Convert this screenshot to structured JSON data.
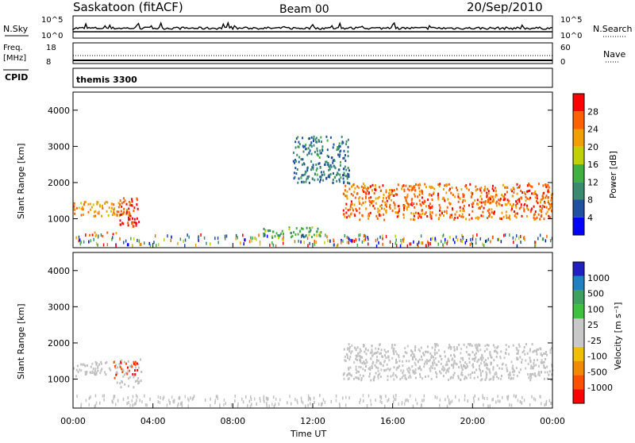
{
  "header": {
    "station": "Saskatoon (fitACF)",
    "beam": "Beam 00",
    "date": "20/Sep/2010"
  },
  "noise_panel": {
    "left_label": "N.Sky",
    "left_ticks": [
      "10^5",
      "10^0"
    ],
    "right_ticks": [
      "10^5",
      "10^0"
    ],
    "right_label": "N.Search"
  },
  "freq_panel": {
    "left_label_1": "Freq.",
    "left_label_2": "[MHz]",
    "left_ticks": [
      "18",
      "8"
    ],
    "right_ticks": [
      "60",
      "0"
    ],
    "right_label": "Nave"
  },
  "cpid_panel": {
    "label": "CPID",
    "value": "themis 3300"
  },
  "colors": {
    "power_scale": [
      "#0000ff",
      "#2050a0",
      "#3a8a70",
      "#40b040",
      "#c0d000",
      "#f0a000",
      "#ff6000",
      "#ff0000"
    ],
    "velocity_scale": [
      "#ff0000",
      "#ff5000",
      "#f08a00",
      "#f0c000",
      "#c8c8c8",
      "#c8c8c8",
      "#40c040",
      "#40a060",
      "#2080c0",
      "#2020c0"
    ],
    "ground_scatter": "#c0c0c0"
  },
  "power_colorbar": {
    "label": "Power [dB]",
    "ticks": [
      "4",
      "8",
      "12",
      "16",
      "20",
      "24",
      "28"
    ]
  },
  "velocity_colorbar": {
    "label": "Velocity [m s⁻¹]",
    "ticks": [
      "-1000",
      "-500",
      "-100",
      "-25",
      "25",
      "100",
      "500",
      "1000"
    ]
  },
  "x_axis": {
    "label": "Time UT",
    "ticks": [
      "00:00",
      "04:00",
      "08:00",
      "12:00",
      "16:00",
      "20:00",
      "00:00"
    ]
  },
  "chart_data": [
    {
      "type": "heatmap",
      "title": "",
      "ylabel": "Slant Range [km]",
      "xlabel": "Time UT",
      "ylim": [
        200,
        4500
      ],
      "xlim_hours": [
        0,
        24
      ],
      "yticks": [
        1000,
        2000,
        3000,
        4000
      ],
      "color_scale": "power [dB]",
      "scale_range": [
        0,
        30
      ],
      "features": [
        {
          "name": "main band",
          "time_hours": [
            0,
            3
          ],
          "range_km": [
            1100,
            1500
          ],
          "value": 22
        },
        {
          "name": "red blob",
          "time_hours": [
            2.3,
            3.3
          ],
          "range_km": [
            800,
            1600
          ],
          "value": 28
        },
        {
          "name": "low band",
          "time_hours": [
            0.8,
            2.2
          ],
          "range_km": [
            550,
            650
          ],
          "value": 24
        },
        {
          "name": "arc",
          "time_hours": [
            11.0,
            13.8
          ],
          "range_km": [
            2000,
            3300
          ],
          "value": 8
        },
        {
          "name": "near range",
          "time_hours": [
            9.5,
            12.5
          ],
          "range_km": [
            500,
            800
          ],
          "value": 12
        },
        {
          "name": "evening band",
          "time_hours": [
            13.5,
            24
          ],
          "range_km": [
            1000,
            2000
          ],
          "value": 24
        }
      ]
    },
    {
      "type": "heatmap",
      "title": "",
      "ylabel": "Slant Range [km]",
      "xlabel": "Time UT",
      "ylim": [
        200,
        4500
      ],
      "xlim_hours": [
        0,
        24
      ],
      "yticks": [
        1000,
        2000,
        3000,
        4000
      ],
      "color_scale": "velocity [m s-1]",
      "scale_range": [
        -1000,
        1000
      ],
      "features": [
        {
          "name": "main band",
          "time_hours": [
            0,
            2
          ],
          "range_km": [
            1100,
            1500
          ],
          "value": 0
        },
        {
          "name": "orange blob",
          "time_hours": [
            2.0,
            3.4
          ],
          "range_km": [
            800,
            1600
          ],
          "value": -200
        },
        {
          "name": "evening band",
          "time_hours": [
            13.5,
            24
          ],
          "range_km": [
            1000,
            2000
          ],
          "value": 0
        }
      ]
    }
  ]
}
